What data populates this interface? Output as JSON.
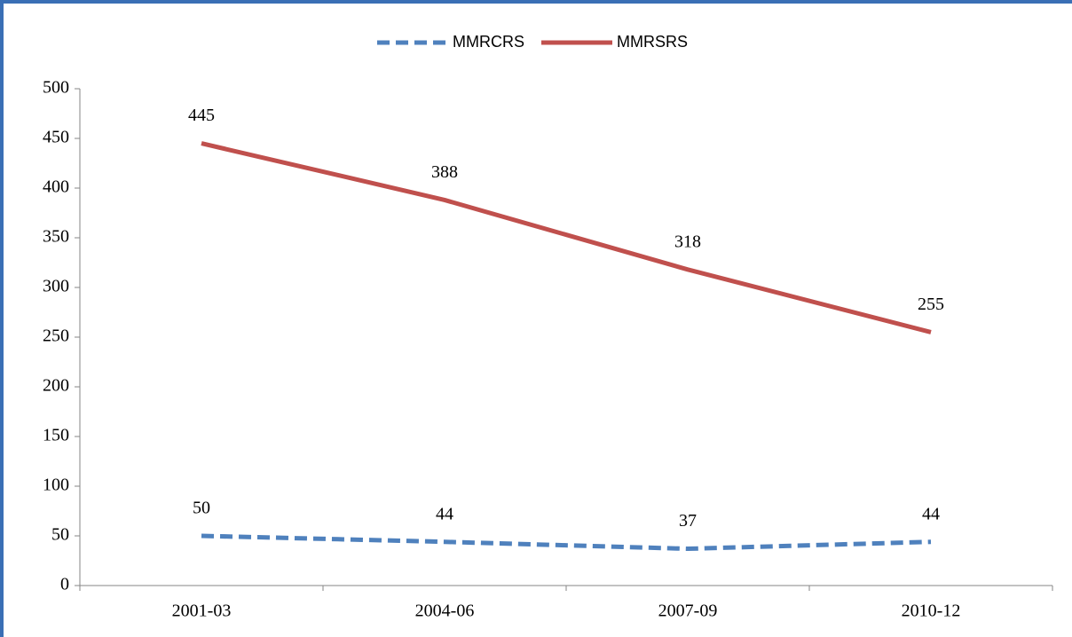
{
  "chart_data": {
    "type": "line",
    "categories": [
      "2001-03",
      "2004-06",
      "2007-09",
      "2010-12"
    ],
    "series": [
      {
        "name": "MMRCRS",
        "color": "#4f81bd",
        "dashed": true,
        "values": [
          50,
          44,
          37,
          44
        ]
      },
      {
        "name": "MMRSRS",
        "color": "#c0504d",
        "dashed": false,
        "values": [
          445,
          388,
          318,
          255
        ]
      }
    ],
    "ylim": [
      0,
      500
    ],
    "yticks": [
      0,
      50,
      100,
      150,
      200,
      250,
      300,
      350,
      400,
      450,
      500
    ],
    "grid": false,
    "legend": "top",
    "data_labels": true
  }
}
